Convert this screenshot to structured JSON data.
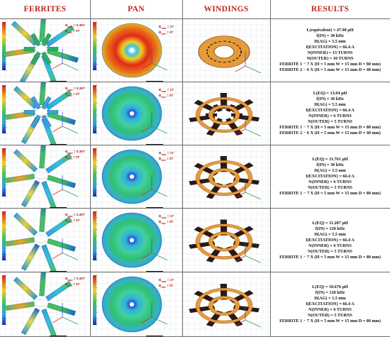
{
  "header": {
    "col1": "FERRITES",
    "col2": "PAN",
    "col3": "WINDINGS",
    "col4": "RESULTS"
  },
  "colors": {
    "header_text": "#c0261e",
    "winding_fill": "#e69a3a",
    "winding_stroke": "#8a4b12",
    "ferrite_bar": "#2b1a14",
    "grid_line": "#6d6d6d"
  },
  "field_labels": {
    "ferrite_bmax": "B",
    "ferrite_bmax_sub": "max",
    "ferrite_bmax_val": "= 0.35T",
    "ferrite_bmin": "B",
    "ferrite_bmin_sub": "min",
    "ferrite_bmin_val": "= 0T",
    "pan_bmax_val": "= 1T",
    "pan_bmin_val": "= 0T"
  },
  "rows": [
    {
      "lines": [
        "L(equivalent) = 47.98 μH",
        "f(IN) = 30 kHz",
        "H(AG) = 5.5 mm",
        "I(EXCITATION) = 66.4 A",
        "N(INNER) = 13 TURNS",
        "N(OUTER) = 10 TURNS",
        "FERRITE 1 − 7 X (H = 5 mm W = 15 mm D = 80 mm)",
        "FERRITE 2 − 6 X (H = 5 mm W = 15 mm D = 40 mm)"
      ]
    },
    {
      "lines": [
        "L(EQ) = 13.04 μH",
        "f(IN) = 30 kHz",
        "H(AG) = 5.5 mm",
        "I(EXCITATION) = 66.4 A",
        "N(INNER) = 6 TURNS",
        "N(OUTER) = 5 TURNS",
        "FERRITE 1 − 7 X (H = 5 mm W = 15 mm D = 80 mm)",
        "FERRITE 2 − 6 X (H = 5 mm W = 15 mm D = 40 mm)"
      ]
    },
    {
      "lines": [
        "L(EQ) = 11.761 μH",
        "f(IN) = 30 kHz",
        "H(AG) = 5.5 mm",
        "I(EXCITATION) = 66.4 A",
        "N(INNER) = 6 TURNS",
        "N(OUTER) = 5 TURNS",
        "FERRITE 1 − 7 X (H = 5 mm W = 15 mm D = 80 mm)"
      ]
    },
    {
      "lines": [
        "L(EQ) = 11.287 μH",
        "f(IN) = 120 kHz",
        "H(AG) = 5.5 mm",
        "I(EXCITATION) = 66.4 A",
        "N(INNER) = 6 TURNS",
        "N(OUTER) = 5 TURNS",
        "FERRITE 1 − 7 X (H = 5 mm W = 15 mm D = 80 mm)"
      ]
    },
    {
      "lines": [
        "L(EQ) = 10.676 μH",
        "f(IN) = 120 kHz",
        "H(AG) = 1.5 mm",
        "I(EXCITATION) = 66.4 A",
        "N(INNER) = 6 TURNS",
        "N(OUTER) = 5 TURNS",
        "FERRITE 1 − 7 X (H = 5 mm W = 15 mm D = 80 mm)"
      ]
    }
  ]
}
